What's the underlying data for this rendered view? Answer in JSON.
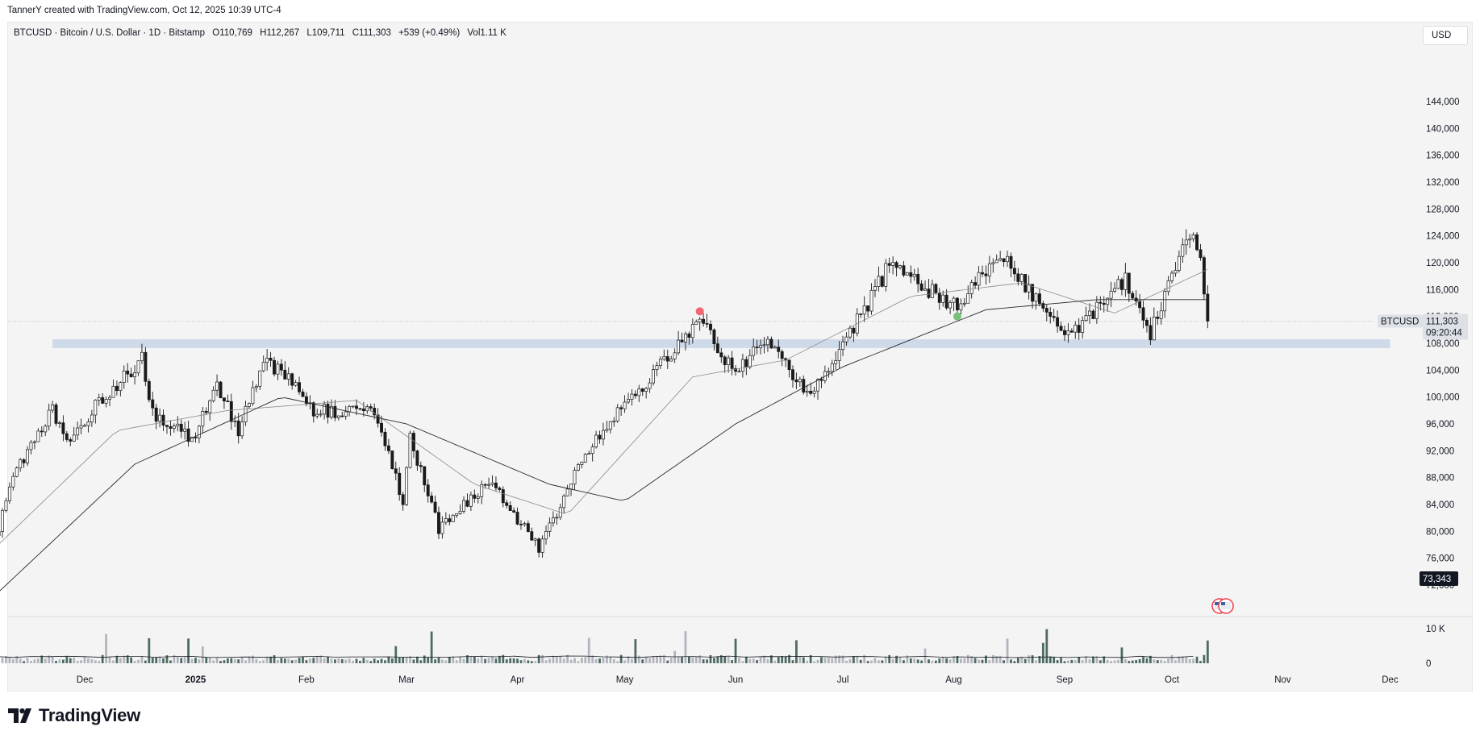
{
  "credit": "TannerY created with TradingView.com, Oct 12, 2025 10:39 UTC-4",
  "legend": {
    "symbol": "BTCUSD · Bitcoin / U.S. Dollar · 1D · Bitstamp",
    "open": "O110,769",
    "high": "H112,267",
    "low": "L109,711",
    "close": "C111,303",
    "change": "+539 (+0.49%)",
    "volume": "Vol1.11 K"
  },
  "currency": "USD",
  "price_tag": {
    "symbol": "BTCUSD",
    "price": "111,303",
    "countdown": "09:20:44"
  },
  "crosshair_tag": "73,343",
  "brand": "TradingView",
  "colors": {
    "up": "#1a1a1a",
    "down": "#1a1a1a",
    "support_band": "#c7d3e6",
    "volume": "#4d6b64",
    "ma": "#555555",
    "marker_red": "#f23645",
    "marker_green": "#4caf50"
  },
  "chart_data": {
    "type": "candlestick",
    "price_axis": {
      "ticks": [
        144000,
        140000,
        136000,
        132000,
        128000,
        124000,
        120000,
        116000,
        112000,
        108000,
        104000,
        100000,
        96000,
        92000,
        88000,
        84000,
        80000,
        76000,
        72000
      ],
      "tick_labels": [
        "144,000",
        "140,000",
        "136,000",
        "132,000",
        "128,000",
        "124,000",
        "120,000",
        "116,000",
        "112,000",
        "108,000",
        "104,000",
        "100,000",
        "96,000",
        "92,000",
        "88,000",
        "84,000",
        "80,000",
        "76,000",
        "72,000"
      ],
      "range": [
        70500,
        146500
      ]
    },
    "volume_axis": {
      "ticks": [
        10000,
        0
      ],
      "tick_labels": [
        "10 K",
        "0"
      ]
    },
    "x_axis": {
      "labels": [
        "Dec",
        "2025",
        "Feb",
        "Mar",
        "Apr",
        "May",
        "Jun",
        "Jul",
        "Aug",
        "Sep",
        "Oct",
        "Nov",
        "Dec"
      ],
      "dates": [
        "2024-12-01",
        "2025-01-01",
        "2025-02-01",
        "2025-03-01",
        "2025-04-01",
        "2025-05-01",
        "2025-06-01",
        "2025-07-01",
        "2025-08-01",
        "2025-09-01",
        "2025-10-01",
        "2025-11-01",
        "2025-12-01"
      ]
    },
    "support_zone": {
      "from_date": "2024-11-22",
      "to_date": "2025-12-01",
      "low": 107300,
      "high": 108600
    },
    "markers": [
      {
        "date": "2025-05-22",
        "price": 111800,
        "kind": "red"
      },
      {
        "date": "2025-08-02",
        "price": 112000,
        "kind": "green"
      }
    ],
    "keyframes": {
      "dates": [
        "2024-11-01",
        "2024-11-11",
        "2024-11-22",
        "2024-11-26",
        "2024-12-05",
        "2024-12-10",
        "2024-12-17",
        "2024-12-20",
        "2024-12-31",
        "2025-01-07",
        "2025-01-13",
        "2025-01-20",
        "2025-01-27",
        "2025-02-03",
        "2025-02-20",
        "2025-02-28",
        "2025-03-02",
        "2025-03-10",
        "2025-03-24",
        "2025-04-07",
        "2025-04-22",
        "2025-05-08",
        "2025-05-22",
        "2025-05-31",
        "2025-06-10",
        "2025-06-22",
        "2025-07-03",
        "2025-07-14",
        "2025-08-02",
        "2025-08-14",
        "2025-08-24",
        "2025-09-01",
        "2025-09-18",
        "2025-09-25",
        "2025-10-02",
        "2025-10-06",
        "2025-10-09",
        "2025-10-11"
      ],
      "close": [
        70000,
        88000,
        98000,
        93000,
        99500,
        101500,
        106000,
        97500,
        93500,
        102000,
        94500,
        106000,
        102500,
        98000,
        98000,
        84500,
        94000,
        80500,
        87500,
        77500,
        93500,
        103000,
        111500,
        104000,
        108000,
        100500,
        109500,
        119500,
        113500,
        121500,
        114500,
        108500,
        117500,
        109500,
        119500,
        124500,
        121500,
        111303
      ]
    },
    "ma_fast_keyframes": {
      "dates": [
        "2024-11-01",
        "2024-12-10",
        "2025-01-10",
        "2025-02-15",
        "2025-03-20",
        "2025-04-15",
        "2025-05-20",
        "2025-06-15",
        "2025-07-20",
        "2025-08-20",
        "2025-09-15",
        "2025-10-05",
        "2025-10-11"
      ],
      "values": [
        75000,
        95000,
        98000,
        99500,
        87000,
        82500,
        103000,
        105500,
        115000,
        117000,
        112500,
        117500,
        119000
      ]
    },
    "ma_slow_keyframes": {
      "dates": [
        "2024-11-01",
        "2024-12-15",
        "2025-01-25",
        "2025-03-01",
        "2025-04-10",
        "2025-05-01",
        "2025-06-01",
        "2025-07-01",
        "2025-08-10",
        "2025-09-10",
        "2025-10-11"
      ],
      "values": [
        68000,
        90000,
        100000,
        96000,
        87000,
        84500,
        96000,
        104500,
        113000,
        114500,
        114500
      ]
    }
  }
}
